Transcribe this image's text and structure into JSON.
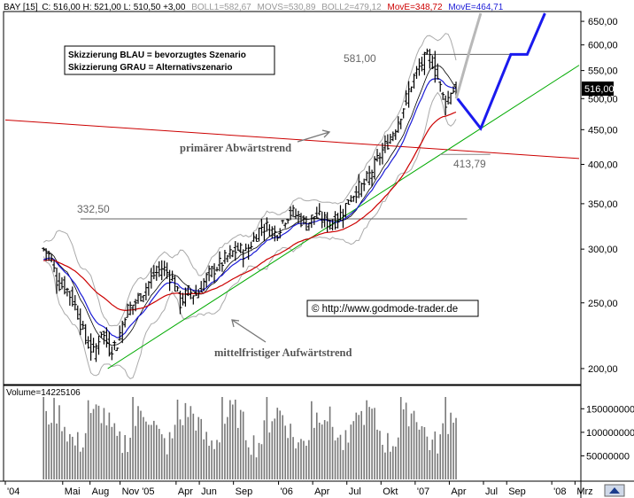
{
  "header": {
    "symbol": "BAY [15]",
    "ohlc": "C: 516,00 H: 521,00 L: 510,50 +3,00",
    "boll1": "BOLL1=582,67",
    "movs": "MOVS=530,89",
    "boll2": "BOLL2=479,12",
    "move1": "MovE=348,72",
    "move2": "MovE=464,71"
  },
  "colors": {
    "background": "#ffffff",
    "candle": "#000000",
    "boll": "#aaaaaa",
    "ma_short": "#000000",
    "ma_blue": "#1b1bd6",
    "ma_red": "#cc0000",
    "trend_down": "#cc0000",
    "trend_up": "#00aa00",
    "scenario_blue": "#1a1aee",
    "scenario_gray": "#b8b8b8",
    "volume": "#777777"
  },
  "legend": {
    "line1": "Skizzierung BLAU = bevorzugtes Szenario",
    "line2": "Skizzierung GRAU = Alternativszenario"
  },
  "annotations": {
    "primary_trend": "primärer Abwärtstrend",
    "medium_trend": "mittelfristiger Aufwärtstrend",
    "copyright": "© http://www.godmode-trader.de"
  },
  "levels": {
    "high": "581,00",
    "low_2006": "332,50",
    "recent_low": "413,79"
  },
  "current_price": "516,00",
  "volume_label": "Volume=14225106",
  "chart_data": {
    "type": "line",
    "series": [
      {
        "values": [
          [
            2004.28,
            300
          ],
          [
            2004.33,
            292
          ],
          [
            2004.38,
            268
          ],
          [
            2004.45,
            262
          ],
          [
            2004.52,
            245
          ],
          [
            2004.58,
            222
          ],
          [
            2004.65,
            210
          ],
          [
            2004.7,
            228
          ],
          [
            2004.76,
            214
          ],
          [
            2004.82,
            218
          ],
          [
            2004.88,
            243
          ],
          [
            2004.95,
            250
          ],
          [
            2005.02,
            262
          ],
          [
            2005.08,
            274
          ],
          [
            2005.15,
            282
          ],
          [
            2005.22,
            272
          ],
          [
            2005.28,
            250
          ],
          [
            2005.34,
            260
          ],
          [
            2005.4,
            257
          ],
          [
            2005.46,
            270
          ],
          [
            2005.52,
            280
          ],
          [
            2005.58,
            286
          ],
          [
            2005.64,
            294
          ],
          [
            2005.7,
            300
          ],
          [
            2005.76,
            296
          ],
          [
            2005.82,
            312
          ],
          [
            2005.88,
            325
          ],
          [
            2005.93,
            322
          ],
          [
            2005.98,
            316
          ],
          [
            2006.03,
            330
          ],
          [
            2006.08,
            340
          ],
          [
            2006.14,
            336
          ],
          [
            2006.2,
            326
          ],
          [
            2006.26,
            336
          ],
          [
            2006.32,
            332
          ],
          [
            2006.38,
            327
          ],
          [
            2006.44,
            334
          ],
          [
            2006.5,
            350
          ],
          [
            2006.56,
            366
          ],
          [
            2006.62,
            372
          ],
          [
            2006.68,
            390
          ],
          [
            2006.74,
            412
          ],
          [
            2006.8,
            432
          ],
          [
            2006.86,
            456
          ],
          [
            2006.92,
            490
          ],
          [
            2006.98,
            532
          ],
          [
            2007.03,
            556
          ],
          [
            2007.08,
            575
          ],
          [
            2007.12,
            571
          ],
          [
            2007.16,
            540
          ],
          [
            2007.2,
            504
          ],
          [
            2007.23,
            492
          ],
          [
            2007.26,
            514
          ],
          [
            2007.3,
            516
          ]
        ]
      }
    ],
    "price_ticks": [
      200,
      250,
      300,
      350,
      400,
      450,
      500,
      550,
      600,
      650
    ],
    "volume_ticks": [
      50000000,
      100000000,
      150000000
    ],
    "volume_tick_labels": [
      "50000000",
      "100000000",
      "150000000"
    ],
    "month_ticks": [
      {
        "t": 2004.0,
        "label": "'04"
      },
      {
        "t": 2004.42,
        "label": "Mai"
      },
      {
        "t": 2004.62,
        "label": "Aug"
      },
      {
        "t": 2004.84,
        "label": "Nov '05"
      },
      {
        "t": 2005.25,
        "label": "Apr"
      },
      {
        "t": 2005.42,
        "label": "Jun"
      },
      {
        "t": 2005.67,
        "label": "Sep"
      },
      {
        "t": 2006.0,
        "label": "'06"
      },
      {
        "t": 2006.25,
        "label": "Apr"
      },
      {
        "t": 2006.5,
        "label": "Jul"
      },
      {
        "t": 2006.75,
        "label": "Okt"
      },
      {
        "t": 2007.0,
        "label": "'07"
      },
      {
        "t": 2007.25,
        "label": "Apr"
      },
      {
        "t": 2007.5,
        "label": "Jul"
      },
      {
        "t": 2007.67,
        "label": "Sep"
      },
      {
        "t": 2008.0,
        "label": "'08"
      },
      {
        "t": 2008.17,
        "label": "Mrz"
      }
    ],
    "ylim": [
      190,
      670
    ],
    "yscale": "log",
    "xlim": [
      2004.0,
      2008.2
    ],
    "grid": false
  }
}
